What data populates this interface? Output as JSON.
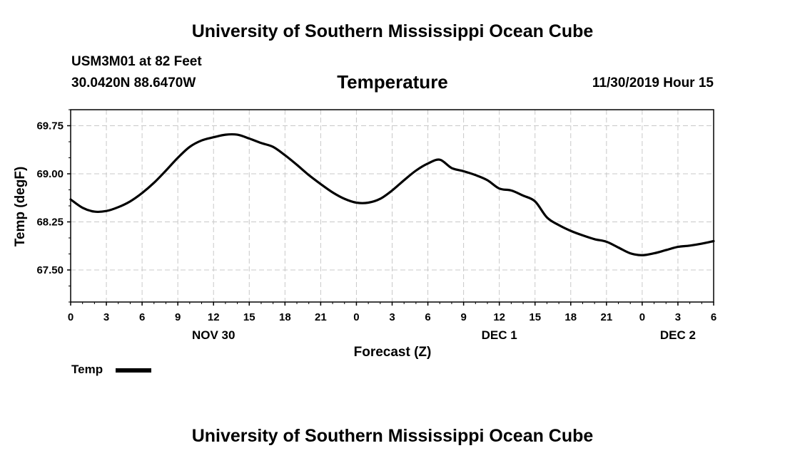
{
  "header": {
    "title_top": "University of Southern Mississippi Ocean Cube",
    "title_bottom": "University of Southern Mississippi Ocean Cube",
    "station": "USM3M01 at 82 Feet",
    "coords": "30.0420N 88.6470W",
    "chart_title": "Temperature",
    "datetime": "11/30/2019 Hour 15"
  },
  "legend": {
    "label": "Temp"
  },
  "colors": {
    "line": "#000000",
    "grid": "#c8c8c8",
    "background": "#ffffff"
  },
  "chart_data": {
    "type": "line",
    "title": "Temperature",
    "xlabel": "Forecast (Z)",
    "ylabel": "Temp (degF)",
    "xlim": [
      0,
      54
    ],
    "ylim": [
      67.0,
      70.0
    ],
    "y_ticks": [
      67.5,
      68.25,
      69.0,
      69.75
    ],
    "y_tick_labels": [
      "67.50",
      "68.25",
      "69.00",
      "69.75"
    ],
    "x_ticks": [
      0,
      3,
      6,
      9,
      12,
      15,
      18,
      21,
      24,
      27,
      30,
      33,
      36,
      39,
      42,
      45,
      48,
      51,
      54
    ],
    "x_tick_labels": [
      "0",
      "3",
      "6",
      "9",
      "12",
      "15",
      "18",
      "21",
      "0",
      "3",
      "6",
      "9",
      "12",
      "15",
      "18",
      "21",
      "0",
      "3",
      "6"
    ],
    "day_labels": [
      {
        "x": 12,
        "label": "NOV 30"
      },
      {
        "x": 36,
        "label": "DEC 1"
      },
      {
        "x": 51,
        "label": "DEC 2"
      }
    ],
    "grid": true,
    "series": [
      {
        "name": "Temp",
        "x": [
          0,
          1,
          2,
          3,
          4,
          5,
          6,
          7,
          8,
          9,
          10,
          11,
          12,
          13,
          14,
          15,
          16,
          17,
          18,
          19,
          20,
          21,
          22,
          23,
          24,
          25,
          26,
          27,
          28,
          29,
          30,
          31,
          32,
          33,
          34,
          35,
          36,
          37,
          38,
          39,
          40,
          41,
          42,
          43,
          44,
          45,
          46,
          47,
          48,
          49,
          50,
          51,
          52,
          53,
          54
        ],
        "values": [
          68.6,
          68.47,
          68.41,
          68.42,
          68.48,
          68.57,
          68.7,
          68.86,
          69.05,
          69.25,
          69.42,
          69.52,
          69.57,
          69.61,
          69.61,
          69.55,
          69.48,
          69.42,
          69.29,
          69.14,
          68.98,
          68.84,
          68.71,
          68.61,
          68.55,
          68.55,
          68.61,
          68.74,
          68.9,
          69.05,
          69.16,
          69.22,
          69.09,
          69.04,
          68.98,
          68.9,
          68.77,
          68.74,
          68.66,
          68.57,
          68.32,
          68.2,
          68.11,
          68.04,
          67.98,
          67.94,
          67.85,
          67.76,
          67.73,
          67.76,
          67.81,
          67.86,
          67.88,
          67.91,
          67.95
        ]
      }
    ]
  }
}
